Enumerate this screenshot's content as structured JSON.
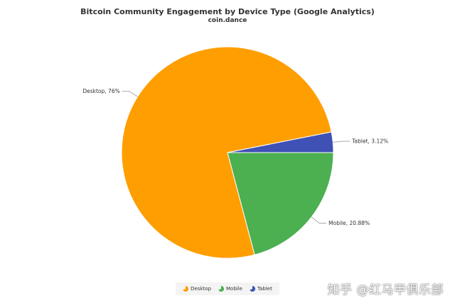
{
  "chart_data": {
    "type": "pie",
    "title": "Bitcoin Community Engagement by Device Type (Google Analytics)",
    "subtitle": "coin.dance",
    "slices": [
      {
        "name": "Desktop",
        "value": 76,
        "label": "Desktop, 76%",
        "color": "#ff9e00"
      },
      {
        "name": "Mobile",
        "value": 20.88,
        "label": "Mobile, 20.88%",
        "color": "#4caf50"
      },
      {
        "name": "Tablet",
        "value": 3.12,
        "label": "Tablet, 3.12%",
        "color": "#3f51b5"
      }
    ],
    "legend": {
      "placement": "bottom-center",
      "entries": [
        "Desktop",
        "Mobile",
        "Tablet"
      ]
    }
  },
  "watermark": "知乎 @红马甲俱乐部"
}
